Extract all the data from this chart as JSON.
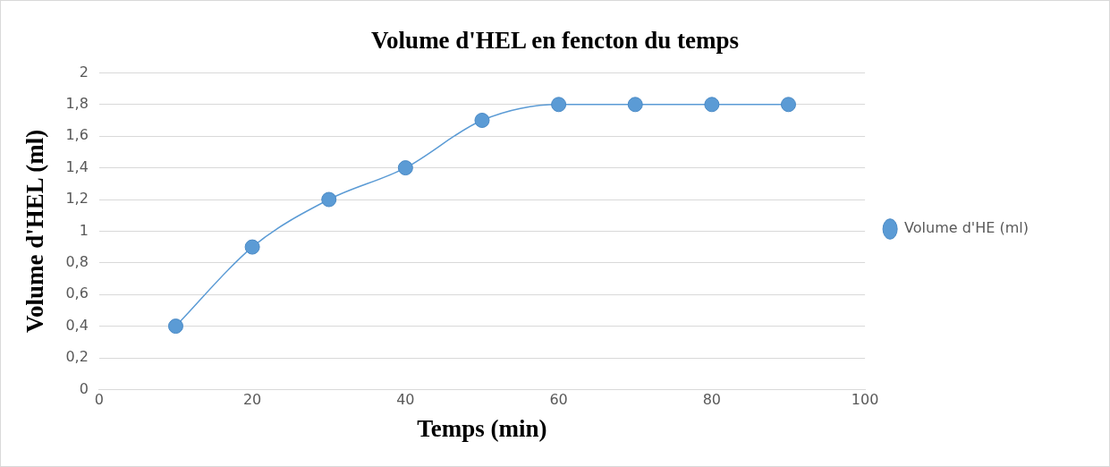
{
  "chart_data": {
    "type": "line",
    "title": "Volume d'HEL en fencton du temps",
    "xlabel": "Temps (min)",
    "ylabel": "Volume d'HEL (ml)",
    "x": [
      10,
      20,
      30,
      40,
      50,
      60,
      70,
      80,
      90
    ],
    "series": [
      {
        "name": "Volume d'HE (ml)",
        "color": "#5b9bd5",
        "values": [
          0.4,
          0.9,
          1.2,
          1.4,
          1.7,
          1.8,
          1.8,
          1.8,
          1.8
        ]
      }
    ],
    "xlim": [
      0,
      100
    ],
    "xticks": [
      0,
      20,
      40,
      60,
      80,
      100
    ],
    "ylim": [
      0,
      2
    ],
    "yticks": [
      0,
      {
        "value": 0.2,
        "label": "0,2"
      },
      {
        "value": 0.4,
        "label": "0,4"
      },
      {
        "value": 0.6,
        "label": "0,6"
      },
      {
        "value": 0.8,
        "label": "0,8"
      },
      1,
      {
        "value": 1.2,
        "label": "1,2"
      },
      {
        "value": 1.4,
        "label": "1,4"
      },
      {
        "value": 1.6,
        "label": "1,6"
      },
      {
        "value": 1.8,
        "label": "1,8"
      },
      2
    ],
    "grid": "y",
    "legend": "right",
    "marker": "circle",
    "line_style": "solid"
  }
}
